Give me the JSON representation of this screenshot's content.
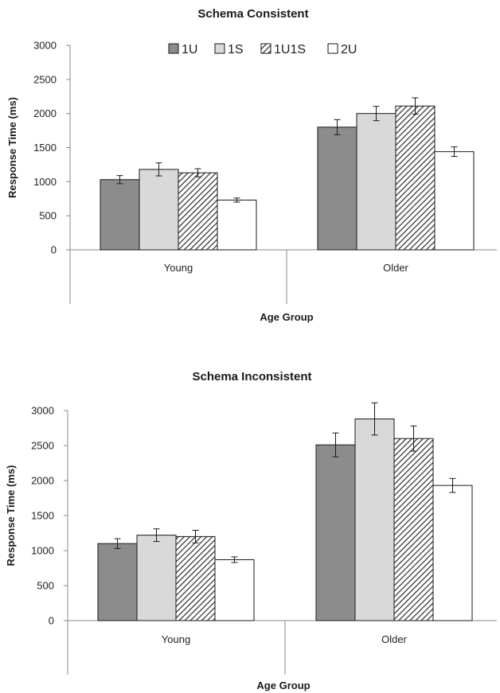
{
  "chart_data": [
    {
      "type": "bar",
      "title": "Schema Consistent",
      "xlabel": "Age Group",
      "ylabel": "Response Time (ms)",
      "categories": [
        "Young",
        "Older"
      ],
      "ylim": [
        0,
        3000
      ],
      "yticks": [
        0,
        500,
        1000,
        1500,
        2000,
        2500,
        3000
      ],
      "legend": {
        "placement": "top",
        "entries": [
          "1U",
          "1S",
          "1U1S",
          "2U"
        ]
      },
      "grid": false,
      "series": [
        {
          "name": "1U",
          "values": [
            1030,
            1800
          ],
          "errors": [
            60,
            110
          ],
          "color": "#8c8c8c"
        },
        {
          "name": "1S",
          "values": [
            1180,
            2000
          ],
          "errors": [
            95,
            105
          ],
          "color": "#d9d9d9"
        },
        {
          "name": "1U1S",
          "values": [
            1130,
            2110
          ],
          "errors": [
            60,
            120
          ],
          "color": "hatch"
        },
        {
          "name": "2U",
          "values": [
            730,
            1440
          ],
          "errors": [
            30,
            70
          ],
          "color": "#ffffff"
        }
      ]
    },
    {
      "type": "bar",
      "title": "Schema Inconsistent",
      "xlabel": "Age Group",
      "ylabel": "Response Time (ms)",
      "categories": [
        "Young",
        "Older"
      ],
      "ylim": [
        0,
        3000
      ],
      "yticks": [
        0,
        500,
        1000,
        1500,
        2000,
        2500,
        3000
      ],
      "grid": false,
      "series": [
        {
          "name": "1U",
          "values": [
            1100,
            2510
          ],
          "errors": [
            70,
            170
          ],
          "color": "#8c8c8c"
        },
        {
          "name": "1S",
          "values": [
            1220,
            2880
          ],
          "errors": [
            90,
            230
          ],
          "color": "#d9d9d9"
        },
        {
          "name": "1U1S",
          "values": [
            1200,
            2600
          ],
          "errors": [
            90,
            180
          ],
          "color": "hatch"
        },
        {
          "name": "2U",
          "values": [
            870,
            1930
          ],
          "errors": [
            40,
            100
          ],
          "color": "#ffffff"
        }
      ]
    }
  ]
}
